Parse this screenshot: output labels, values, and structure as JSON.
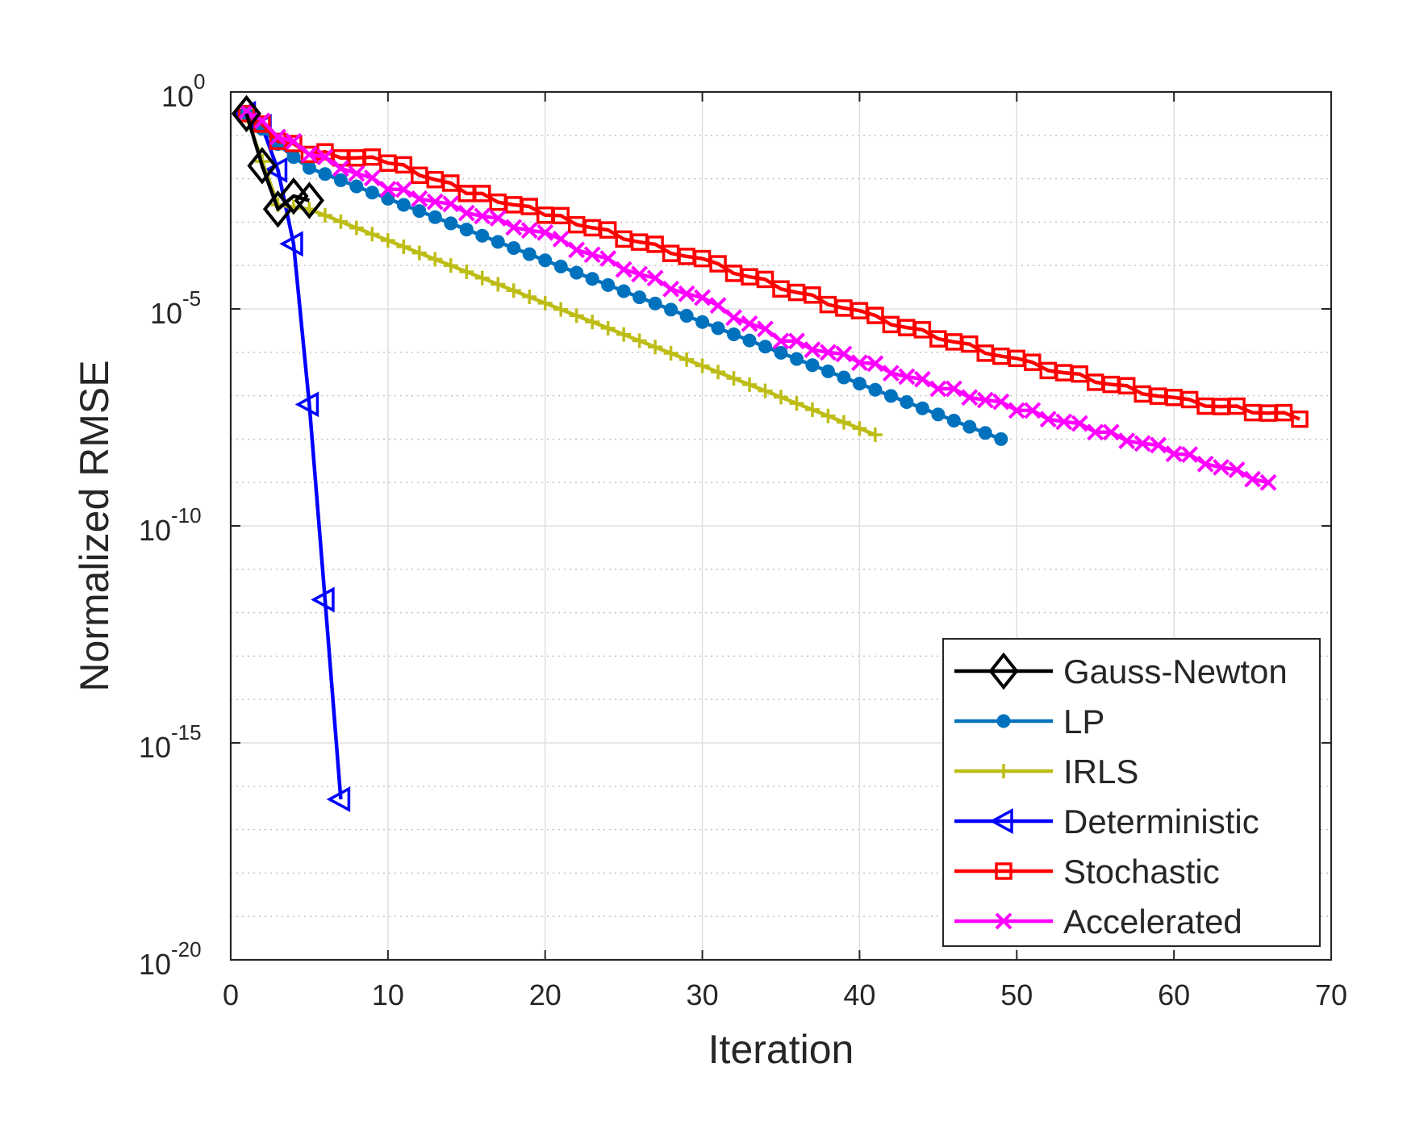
{
  "chart_data": {
    "type": "line",
    "xlabel": "Iteration",
    "ylabel": "Normalized RMSE",
    "xlim": [
      0,
      70
    ],
    "ylim_log10": [
      -20,
      0
    ],
    "yscale": "log",
    "grid": true,
    "legend_location": "bottom-right",
    "x_ticks": [
      0,
      10,
      20,
      30,
      40,
      50,
      60,
      70
    ],
    "x_tick_labels": [
      "0",
      "10",
      "20",
      "30",
      "40",
      "50",
      "60",
      "70"
    ],
    "y_ticks_log10": [
      0,
      -5,
      -10,
      -15,
      -20
    ],
    "y_tick_labels": [
      {
        "base": "10",
        "exp": "0"
      },
      {
        "base": "10",
        "exp": "-5"
      },
      {
        "base": "10",
        "exp": "-10"
      },
      {
        "base": "10",
        "exp": "-15"
      },
      {
        "base": "10",
        "exp": "-20"
      }
    ],
    "series": [
      {
        "name": "Gauss-Newton",
        "color": "#000000",
        "marker": "diamond",
        "line": "linear",
        "points": [
          [
            1,
            -0.5
          ],
          [
            2,
            -1.7
          ],
          [
            3,
            -2.7
          ],
          [
            4,
            -2.4
          ],
          [
            5,
            -2.5
          ]
        ]
      },
      {
        "name": "LP",
        "color": "#0072bd",
        "marker": "circle",
        "line": "linear",
        "points": [
          [
            1,
            -0.5
          ],
          [
            2,
            -0.85
          ],
          [
            3,
            -1.2
          ],
          [
            4,
            -1.5
          ],
          [
            5,
            -1.75
          ],
          [
            49,
            -8.0
          ]
        ]
      },
      {
        "name": "IRLS",
        "color": "#bdbd17",
        "marker": "plus",
        "line": "linear",
        "points": [
          [
            1,
            -0.55
          ],
          [
            2,
            -1.6
          ],
          [
            3,
            -2.6
          ],
          [
            5,
            -2.7
          ],
          [
            41,
            -7.9
          ]
        ]
      },
      {
        "name": "Deterministic",
        "color": "#0000ff",
        "marker": "triangle-left",
        "line": "linear",
        "points": [
          [
            1,
            -0.5
          ],
          [
            2,
            -0.8
          ],
          [
            3,
            -1.8
          ],
          [
            4,
            -3.5
          ],
          [
            5,
            -7.2
          ],
          [
            6,
            -11.7
          ],
          [
            7,
            -16.3
          ]
        ]
      },
      {
        "name": "Stochastic",
        "color": "#ff0000",
        "marker": "square",
        "line": "stair",
        "points": [
          [
            1,
            -0.5
          ],
          [
            3,
            -1.1
          ],
          [
            5,
            -1.4
          ],
          [
            10,
            -1.6
          ],
          [
            15,
            -2.3
          ],
          [
            20,
            -2.8
          ],
          [
            30,
            -3.9
          ],
          [
            40,
            -5.1
          ],
          [
            50,
            -6.2
          ],
          [
            60,
            -7.1
          ],
          [
            68,
            -7.5
          ]
        ]
      },
      {
        "name": "Accelerated",
        "color": "#ff00ff",
        "marker": "x",
        "line": "stair",
        "points": [
          [
            1,
            -0.45
          ],
          [
            3,
            -1.0
          ],
          [
            5,
            -1.4
          ],
          [
            10,
            -2.2
          ],
          [
            20,
            -3.3
          ],
          [
            30,
            -4.8
          ],
          [
            35,
            -5.7
          ],
          [
            40,
            -6.2
          ],
          [
            45,
            -6.8
          ],
          [
            50,
            -7.3
          ],
          [
            55,
            -7.8
          ],
          [
            60,
            -8.3
          ],
          [
            66,
            -9.0
          ]
        ]
      }
    ]
  }
}
